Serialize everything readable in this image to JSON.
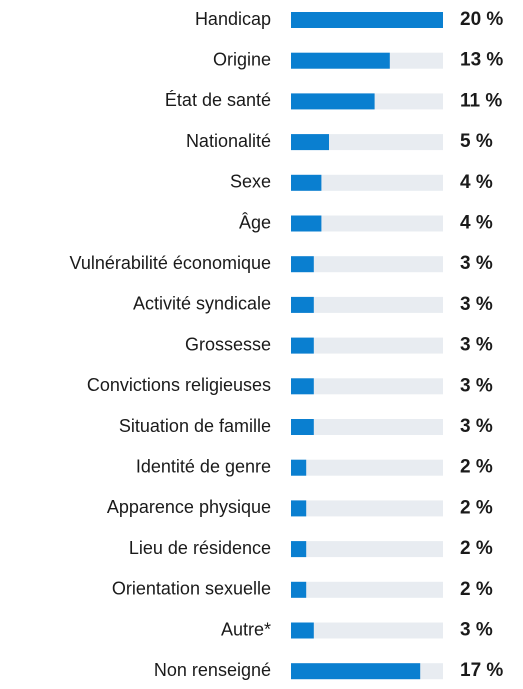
{
  "chart_data": {
    "type": "hbar",
    "categories": [
      "Handicap",
      "Origine",
      "État de santé",
      "Nationalité",
      "Sexe",
      "Âge",
      "Vulnérabilité économique",
      "Activité syndicale",
      "Grossesse",
      "Convictions religieuses",
      "Situation de famille",
      "Identité de genre",
      "Apparence physique",
      "Lieu de résidence",
      "Orientation sexuelle",
      "Autre*",
      "Non renseigné"
    ],
    "values": [
      20,
      13,
      11,
      5,
      4,
      4,
      3,
      3,
      3,
      3,
      3,
      2,
      2,
      2,
      2,
      3,
      17
    ],
    "value_labels": [
      "20 %",
      "13 %",
      "11 %",
      "5 %",
      "4 %",
      "4 %",
      "3 %",
      "3 %",
      "3 %",
      "3 %",
      "3 %",
      "2 %",
      "2 %",
      "2 %",
      "2 %",
      "3 %",
      "17 %"
    ],
    "color": "#0a7fd0",
    "track_color": "#e8ecf1",
    "xlim": [
      0,
      20
    ]
  }
}
